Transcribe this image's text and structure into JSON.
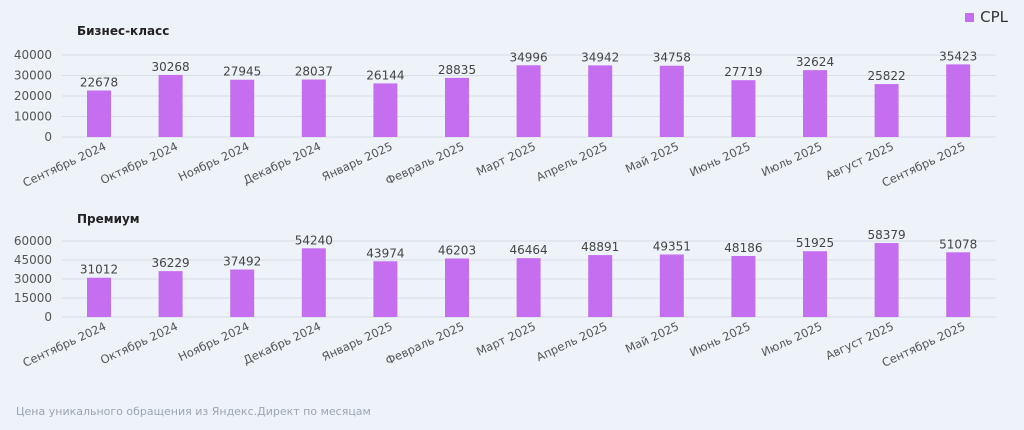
{
  "legend": {
    "label": "CPL",
    "color": "#c56ff0"
  },
  "footer": "Цена уникального обращения из Яндекс.Директ по месяцам",
  "chart_data": [
    {
      "type": "bar",
      "title": "Бизнес-класс",
      "categories": [
        "Сентябрь 2024",
        "Октябрь 2024",
        "Ноябрь 2024",
        "Декабрь 2024",
        "Январь 2025",
        "Февраль 2025",
        "Март 2025",
        "Апрель 2025",
        "Май 2025",
        "Июнь 2025",
        "Июль 2025",
        "Август 2025",
        "Сентябрь 2025"
      ],
      "series": [
        {
          "name": "CPL",
          "values": [
            22678,
            30268,
            27945,
            28037,
            26144,
            28835,
            34996,
            34942,
            34758,
            27719,
            32624,
            25822,
            35423
          ]
        }
      ],
      "ylim": [
        0,
        40000
      ],
      "yticks": [
        0,
        10000,
        20000,
        30000,
        40000
      ],
      "grid": true,
      "legend_position": "top-right"
    },
    {
      "type": "bar",
      "title": "Премиум",
      "categories": [
        "Сентябрь 2024",
        "Октябрь 2024",
        "Ноябрь 2024",
        "Декабрь 2024",
        "Январь 2025",
        "Февраль 2025",
        "Март 2025",
        "Апрель 2025",
        "Май 2025",
        "Июнь 2025",
        "Июль 2025",
        "Август 2025",
        "Сентябрь 2025"
      ],
      "series": [
        {
          "name": "CPL",
          "values": [
            31012,
            36229,
            37492,
            54240,
            43974,
            46203,
            46464,
            48891,
            49351,
            48186,
            51925,
            58379,
            51078
          ]
        }
      ],
      "ylim": [
        0,
        60000
      ],
      "yticks": [
        0,
        15000,
        30000,
        45000,
        60000
      ],
      "grid": true,
      "legend_position": "top-right"
    }
  ]
}
